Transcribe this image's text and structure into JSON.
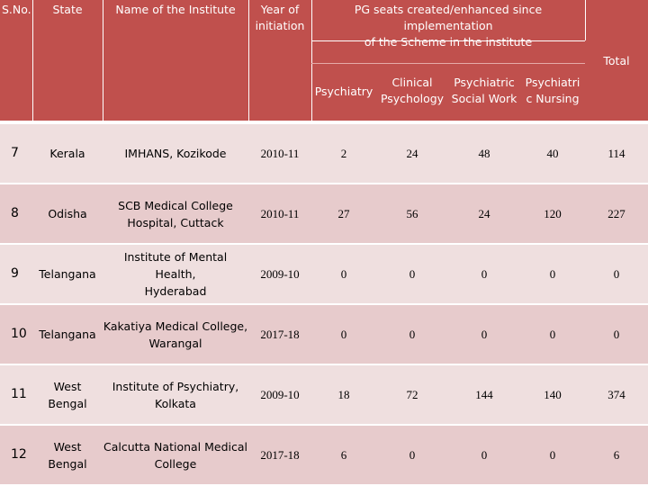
{
  "header": {
    "sno": "S.No.",
    "state": "State",
    "institute": "Name of the Institute",
    "year_line1": "Year of",
    "year_line2": "initiation",
    "pg_line1": "PG seats created/enhanced since implementation",
    "pg_line2": "of the Scheme in the institute",
    "total": "Total",
    "psychiatry": "Psychiatry",
    "clinical_line1": "Clinical",
    "clinical_line2": "Psychology",
    "psw_line1": "Psychiatric",
    "psw_line2": "Social Work",
    "pn_line1": "Psychiatri",
    "pn_line2": "c Nursing"
  },
  "rows": [
    {
      "sno": "7",
      "state_l1": "Kerala",
      "state_l2": "",
      "inst_l1": "IMHANS, Kozikode",
      "inst_l2": "",
      "year": "2010-11",
      "psychiatry": "2",
      "clinical": "24",
      "psw": "48",
      "pn": "40",
      "total": "114"
    },
    {
      "sno": "8",
      "state_l1": "Odisha",
      "state_l2": "",
      "inst_l1": "SCB Medical College",
      "inst_l2": "Hospital, Cuttack",
      "year": "2010-11",
      "psychiatry": "27",
      "clinical": "56",
      "psw": "24",
      "pn": "120",
      "total": "227"
    },
    {
      "sno": "9",
      "state_l1": "Telangana",
      "state_l2": "",
      "inst_l1": "Institute of Mental Health,",
      "inst_l2": "Hyderabad",
      "year": "2009-10",
      "psychiatry": "0",
      "clinical": "0",
      "psw": "0",
      "pn": "0",
      "total": "0"
    },
    {
      "sno": "10",
      "state_l1": "Telangana",
      "state_l2": "",
      "inst_l1": "Kakatiya Medical College,",
      "inst_l2": "Warangal",
      "year": "2017-18",
      "psychiatry": "0",
      "clinical": "0",
      "psw": "0",
      "pn": "0",
      "total": "0"
    },
    {
      "sno": "11",
      "state_l1": "West",
      "state_l2": "Bengal",
      "inst_l1": "Institute of Psychiatry,",
      "inst_l2": "Kolkata",
      "year": "2009-10",
      "psychiatry": "18",
      "clinical": "72",
      "psw": "144",
      "pn": "140",
      "total": "374"
    },
    {
      "sno": "12",
      "state_l1": "West",
      "state_l2": "Bengal",
      "inst_l1": "Calcutta National Medical",
      "inst_l2": "College",
      "year": "2017-18",
      "psychiatry": "6",
      "clinical": "0",
      "psw": "0",
      "pn": "0",
      "total": "6"
    }
  ],
  "colors": {
    "header_bg": "#c0504d",
    "row_light": "#efdfdf",
    "row_dark": "#e7cbcc"
  }
}
